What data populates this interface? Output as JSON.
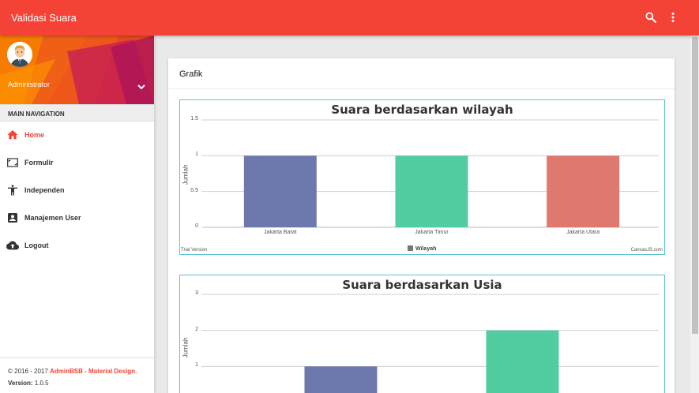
{
  "app": {
    "title": "Validasi Suara"
  },
  "topbar": {
    "search_icon": "search-icon",
    "more_icon": "more-vert-icon"
  },
  "user": {
    "name": "Administrator"
  },
  "nav": {
    "header": "MAIN NAVIGATION",
    "items": [
      {
        "label": "Home",
        "icon": "home-icon",
        "active": true
      },
      {
        "label": "Formulir",
        "icon": "form-icon",
        "active": false
      },
      {
        "label": "Independen",
        "icon": "person-icon",
        "active": false
      },
      {
        "label": "Manajemen User",
        "icon": "account-box-icon",
        "active": false
      },
      {
        "label": "Logout",
        "icon": "cloud-upload-icon",
        "active": false
      }
    ]
  },
  "footer": {
    "copyright": "© 2016 - 2017",
    "brand": "AdminBSB - Material Design",
    "brand_suffix": ".",
    "version_label": "Version:",
    "version": "1.0.5"
  },
  "card": {
    "title": "Grafik"
  },
  "colors": {
    "accent": "#f44336",
    "bar1": "#6d78ad",
    "bar2": "#51cda0",
    "bar3": "#df7970",
    "chart_border": "#5bc6ce"
  },
  "chart_data": [
    {
      "type": "bar",
      "title": "Suara berdasarkan wilayah",
      "ylabel": "Jumlah",
      "xlabel": "",
      "categories": [
        "Jakarta Barat",
        "Jakarta Timur",
        "Jakarta Utara"
      ],
      "values": [
        1,
        1,
        1
      ],
      "colors": [
        "#6d78ad",
        "#51cda0",
        "#df7970"
      ],
      "ylim": [
        0,
        1.5
      ],
      "yticks": [
        "0",
        "0.5",
        "1",
        "1.5"
      ],
      "legend": {
        "label": "Wilayah",
        "placement": "bottom"
      },
      "watermark_left": "Trial Version",
      "watermark_right": "CanvasJS.com",
      "grid": true
    },
    {
      "type": "bar",
      "title": "Suara berdasarkan Usia",
      "ylabel": "Jumlah",
      "xlabel": "",
      "categories": [
        "",
        ""
      ],
      "values": [
        1,
        2
      ],
      "colors": [
        "#6d78ad",
        "#51cda0"
      ],
      "ylim": [
        0,
        3
      ],
      "yticks": [
        "1",
        "2",
        "3"
      ],
      "grid": true
    }
  ]
}
